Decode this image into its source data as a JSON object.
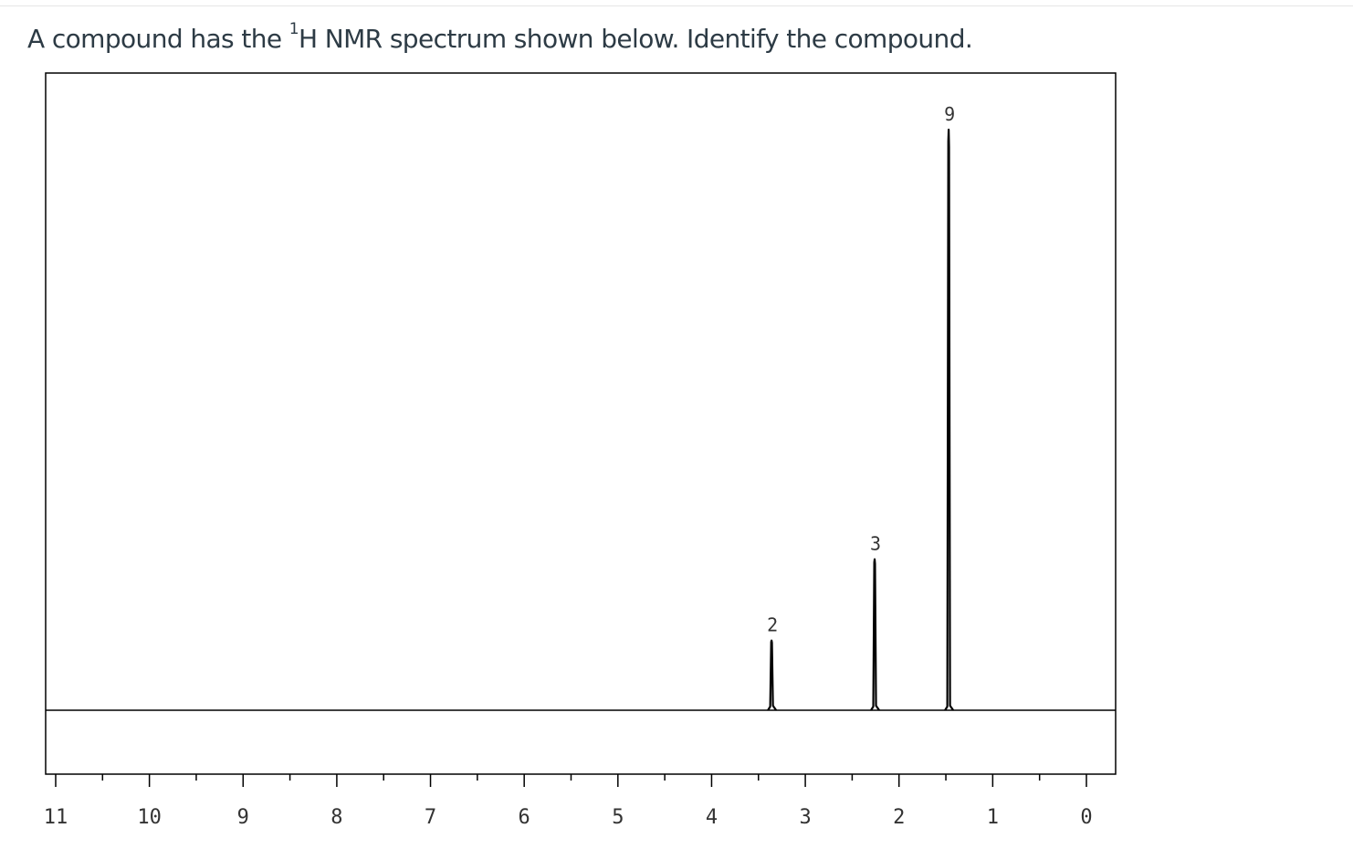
{
  "question": {
    "prefix": "A compound has the ",
    "superscript": "1",
    "suffix": "H NMR spectrum shown below. Identify the compound."
  },
  "chart_data": {
    "type": "line",
    "title": "",
    "xlabel": "",
    "ylabel": "",
    "xlim": [
      11,
      0
    ],
    "x_reversed": true,
    "major_ticks": [
      11,
      10,
      9,
      8,
      7,
      6,
      5,
      4,
      3,
      2,
      1,
      0
    ],
    "tick_labels": [
      "11",
      "10",
      "9",
      "8",
      "7",
      "6",
      "5",
      "4",
      "3",
      "2",
      "1",
      "0"
    ],
    "minor_tick_step": 0.5,
    "baseline_level": 0,
    "peaks": [
      {
        "ppm": 3.36,
        "relative_height": 0.12,
        "integration": "2"
      },
      {
        "ppm": 2.26,
        "relative_height": 0.26,
        "integration": "3"
      },
      {
        "ppm": 1.47,
        "relative_height": 1.0,
        "integration": "9"
      }
    ],
    "colors": {
      "line": "#000000",
      "frame": "#000000"
    },
    "grid": false
  }
}
